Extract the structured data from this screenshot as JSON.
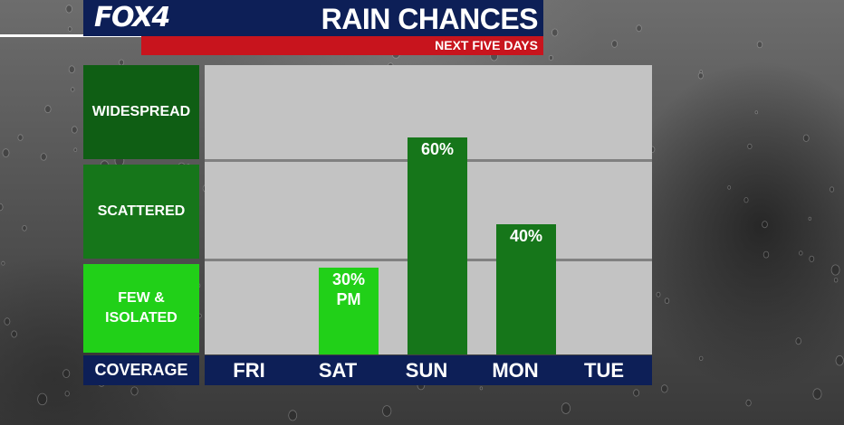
{
  "header": {
    "logo": "FOX4",
    "title": "RAIN CHANCES",
    "subtitle": "NEXT FIVE DAYS"
  },
  "coverage": {
    "levels": [
      "WIDESPREAD",
      "SCATTERED",
      "FEW &\nISOLATED"
    ],
    "footer_label": "COVERAGE"
  },
  "colors": {
    "navy": "#0d1f57",
    "red": "#c8141d",
    "widespread": "#0f5e14",
    "scattered": "#16761a",
    "few_isolated": "#21d018",
    "plot_bg": "#c3c3c3"
  },
  "chart_data": {
    "type": "bar",
    "title": "RAIN CHANCES",
    "subtitle": "NEXT FIVE DAYS",
    "categories": [
      "FRI",
      "SAT",
      "SUN",
      "MON",
      "TUE"
    ],
    "values": [
      0,
      30,
      60,
      40,
      0
    ],
    "data_labels": [
      "",
      "30%\nPM",
      "60%",
      "40%",
      ""
    ],
    "unit": "%",
    "ylim": [
      0,
      100
    ],
    "y_bands": [
      "FEW & ISOLATED",
      "SCATTERED",
      "WIDESPREAD"
    ],
    "ylabel": "COVERAGE",
    "grid": true
  }
}
